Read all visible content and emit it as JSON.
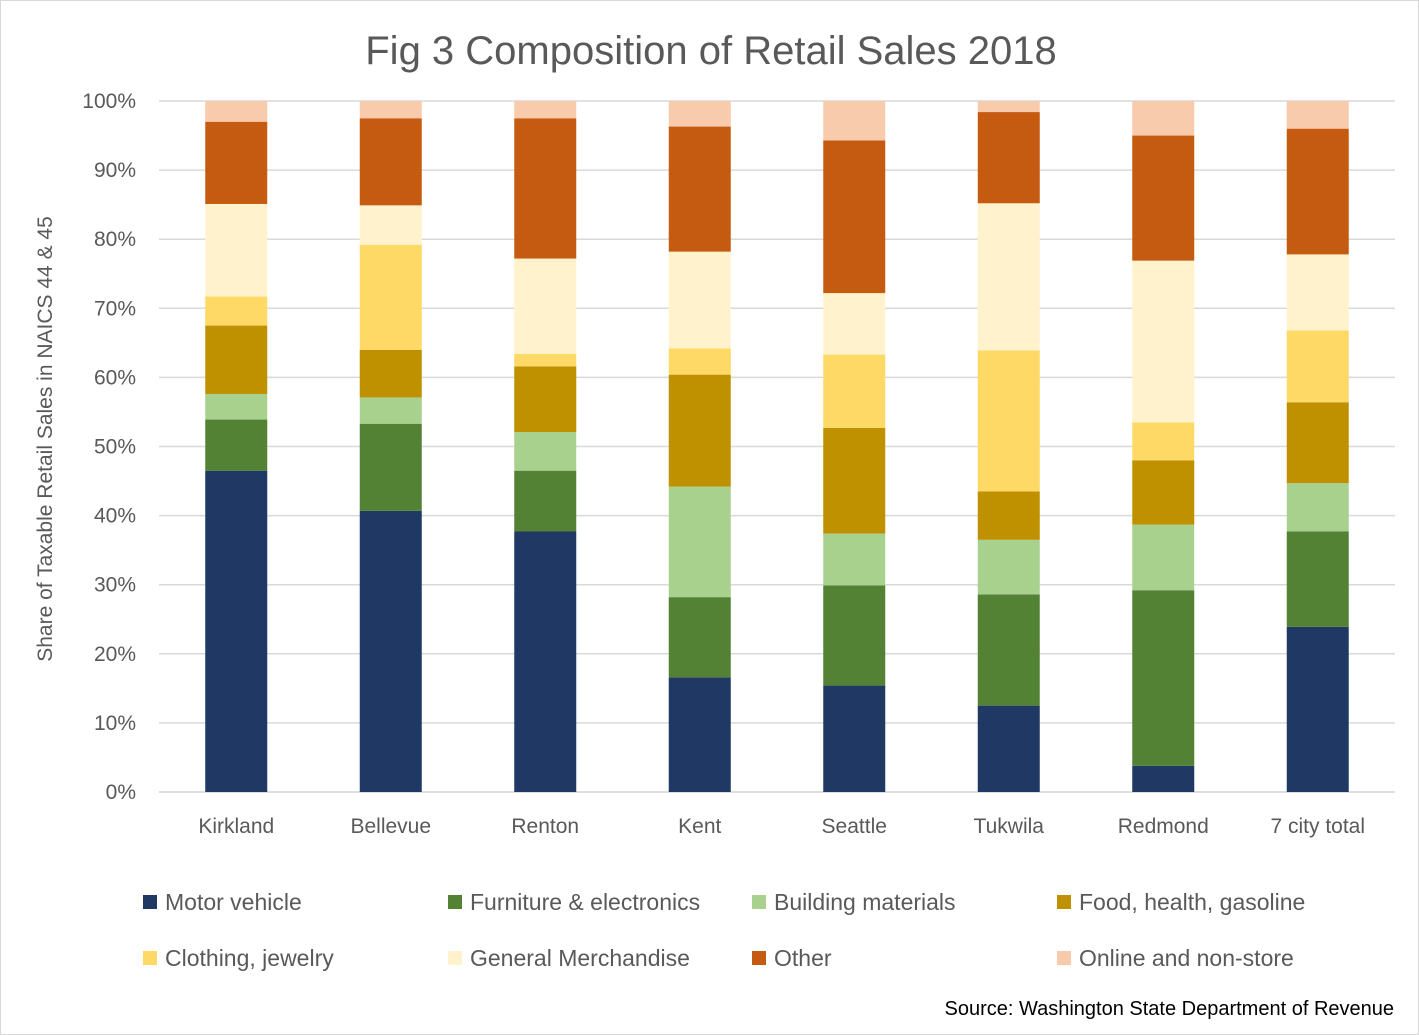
{
  "chart_data": {
    "type": "bar",
    "stacked": true,
    "title": "Fig 3 Composition of Retail Sales 2018",
    "xlabel": "",
    "ylabel": "Share of Taxable Retail Sales in NAICS 44 & 45",
    "ylim": [
      0,
      100
    ],
    "yticks": [
      "0%",
      "10%",
      "20%",
      "30%",
      "40%",
      "50%",
      "60%",
      "70%",
      "80%",
      "90%",
      "100%"
    ],
    "grid": true,
    "legend_position": "bottom",
    "categories": [
      "Kirkland",
      "Bellevue",
      "Renton",
      "Kent",
      "Seattle",
      "Tukwila",
      "Redmond",
      "7 city total"
    ],
    "series": [
      {
        "name": "Motor vehicle",
        "color": "#203864",
        "values": [
          46.5,
          40.7,
          37.7,
          16.6,
          15.4,
          12.5,
          3.8,
          23.9
        ]
      },
      {
        "name": "Furniture & electronics",
        "color": "#548235",
        "values": [
          7.4,
          12.6,
          8.8,
          11.6,
          14.5,
          16.1,
          25.4,
          13.8
        ]
      },
      {
        "name": "Building materials",
        "color": "#a9d18e",
        "values": [
          3.7,
          3.8,
          5.6,
          16.0,
          7.5,
          7.9,
          9.5,
          7.0
        ]
      },
      {
        "name": "Food, health, gasoline",
        "color": "#bf9000",
        "values": [
          9.9,
          6.9,
          9.5,
          16.2,
          15.3,
          7.0,
          9.3,
          11.7
        ]
      },
      {
        "name": "Clothing, jewelry",
        "color": "#ffd966",
        "values": [
          4.2,
          15.2,
          1.8,
          3.8,
          10.6,
          20.4,
          5.5,
          10.4
        ]
      },
      {
        "name": "General Merchandise",
        "color": "#fff2cc",
        "values": [
          13.4,
          5.7,
          13.8,
          14.0,
          8.9,
          21.3,
          23.4,
          11.0
        ]
      },
      {
        "name": "Other",
        "color": "#c55a11",
        "values": [
          11.9,
          12.6,
          20.3,
          18.1,
          22.1,
          13.2,
          18.1,
          18.2
        ]
      },
      {
        "name": "Online and non-store",
        "color": "#f8cbad",
        "values": [
          3.0,
          2.5,
          2.5,
          3.7,
          5.7,
          1.6,
          5.0,
          4.0
        ]
      }
    ],
    "source": "Source: Washington State Department of Revenue"
  },
  "colors": {
    "gridline": "#d9d9d9",
    "text": "#595959"
  }
}
